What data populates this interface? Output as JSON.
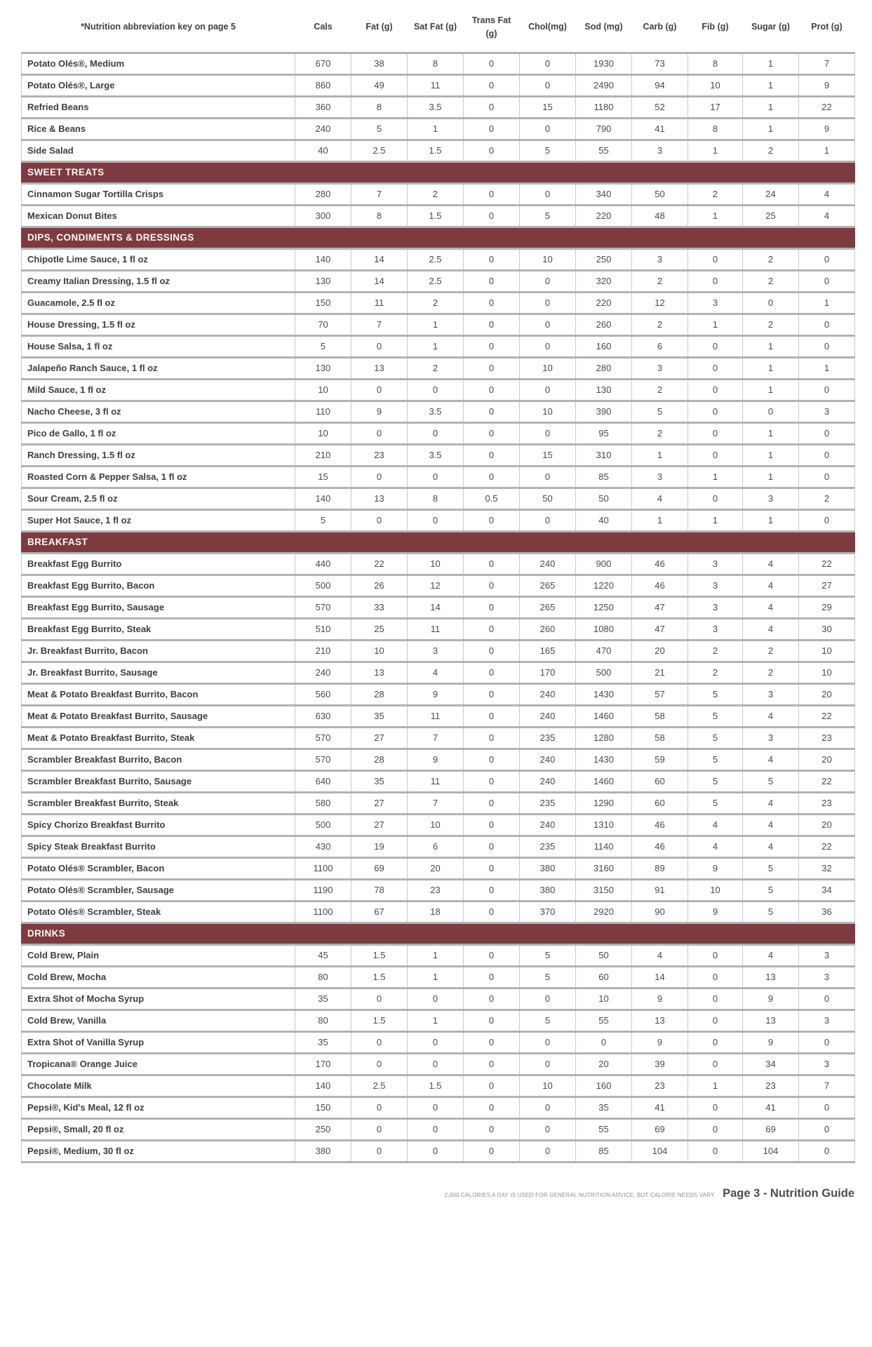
{
  "header": {
    "note": "*Nutrition abbreviation key on page 5",
    "columns": [
      "Cals",
      "Fat (g)",
      "Sat Fat (g)",
      "Trans Fat (g)",
      "Chol(mg)",
      "Sod (mg)",
      "Carb (g)",
      "Fib (g)",
      "Sugar (g)",
      "Prot (g)"
    ]
  },
  "colors": {
    "section_bg": "#7d3b41",
    "section_text": "#fdf8f4",
    "gridline_horizontal": "#b3b3b3",
    "gridline_vertical": "#c9c9c9"
  },
  "sections": [
    {
      "title": "",
      "items": [
        {
          "name": "Potato Olés®, Medium",
          "values": [
            "670",
            "38",
            "8",
            "0",
            "0",
            "1930",
            "73",
            "8",
            "1",
            "7"
          ]
        },
        {
          "name": "Potato Olés®, Large",
          "values": [
            "860",
            "49",
            "11",
            "0",
            "0",
            "2490",
            "94",
            "10",
            "1",
            "9"
          ]
        },
        {
          "name": "Refried Beans",
          "values": [
            "360",
            "8",
            "3.5",
            "0",
            "15",
            "1180",
            "52",
            "17",
            "1",
            "22"
          ]
        },
        {
          "name": "Rice & Beans",
          "values": [
            "240",
            "5",
            "1",
            "0",
            "0",
            "790",
            "41",
            "8",
            "1",
            "9"
          ]
        },
        {
          "name": "Side Salad",
          "values": [
            "40",
            "2.5",
            "1.5",
            "0",
            "5",
            "55",
            "3",
            "1",
            "2",
            "1"
          ]
        }
      ]
    },
    {
      "title": "SWEET TREATS",
      "items": [
        {
          "name": "Cinnamon Sugar Tortilla Crisps",
          "values": [
            "280",
            "7",
            "2",
            "0",
            "0",
            "340",
            "50",
            "2",
            "24",
            "4"
          ]
        },
        {
          "name": "Mexican Donut Bites",
          "values": [
            "300",
            "8",
            "1.5",
            "0",
            "5",
            "220",
            "48",
            "1",
            "25",
            "4"
          ]
        }
      ]
    },
    {
      "title": "DIPS, CONDIMENTS & DRESSINGS",
      "items": [
        {
          "name": "Chipotle Lime Sauce, 1 fl oz",
          "values": [
            "140",
            "14",
            "2.5",
            "0",
            "10",
            "250",
            "3",
            "0",
            "2",
            "0"
          ]
        },
        {
          "name": "Creamy Italian Dressing, 1.5 fl oz",
          "values": [
            "130",
            "14",
            "2.5",
            "0",
            "0",
            "320",
            "2",
            "0",
            "2",
            "0"
          ]
        },
        {
          "name": "Guacamole, 2.5 fl oz",
          "values": [
            "150",
            "11",
            "2",
            "0",
            "0",
            "220",
            "12",
            "3",
            "0",
            "1"
          ]
        },
        {
          "name": "House Dressing, 1.5 fl oz",
          "values": [
            "70",
            "7",
            "1",
            "0",
            "0",
            "260",
            "2",
            "1",
            "2",
            "0"
          ]
        },
        {
          "name": "House Salsa, 1 fl oz",
          "values": [
            "5",
            "0",
            "1",
            "0",
            "0",
            "160",
            "6",
            "0",
            "1",
            "0"
          ]
        },
        {
          "name": "Jalapeño Ranch Sauce, 1 fl oz",
          "values": [
            "130",
            "13",
            "2",
            "0",
            "10",
            "280",
            "3",
            "0",
            "1",
            "1"
          ]
        },
        {
          "name": "Mild Sauce, 1 fl oz",
          "values": [
            "10",
            "0",
            "0",
            "0",
            "0",
            "130",
            "2",
            "0",
            "1",
            "0"
          ]
        },
        {
          "name": "Nacho Cheese, 3 fl oz",
          "values": [
            "110",
            "9",
            "3.5",
            "0",
            "10",
            "390",
            "5",
            "0",
            "0",
            "3"
          ]
        },
        {
          "name": "Pico de Gallo, 1 fl oz",
          "values": [
            "10",
            "0",
            "0",
            "0",
            "0",
            "95",
            "2",
            "0",
            "1",
            "0"
          ]
        },
        {
          "name": "Ranch Dressing, 1.5 fl oz",
          "values": [
            "210",
            "23",
            "3.5",
            "0",
            "15",
            "310",
            "1",
            "0",
            "1",
            "0"
          ]
        },
        {
          "name": "Roasted Corn & Pepper Salsa, 1 fl oz",
          "values": [
            "15",
            "0",
            "0",
            "0",
            "0",
            "85",
            "3",
            "1",
            "1",
            "0"
          ]
        },
        {
          "name": "Sour Cream, 2.5 fl oz",
          "values": [
            "140",
            "13",
            "8",
            "0.5",
            "50",
            "50",
            "4",
            "0",
            "3",
            "2"
          ]
        },
        {
          "name": "Super Hot Sauce, 1 fl oz",
          "values": [
            "5",
            "0",
            "0",
            "0",
            "0",
            "40",
            "1",
            "1",
            "1",
            "0"
          ]
        }
      ]
    },
    {
      "title": "BREAKFAST",
      "items": [
        {
          "name": "Breakfast Egg Burrito",
          "values": [
            "440",
            "22",
            "10",
            "0",
            "240",
            "900",
            "46",
            "3",
            "4",
            "22"
          ]
        },
        {
          "name": "Breakfast Egg Burrito, Bacon",
          "values": [
            "500",
            "26",
            "12",
            "0",
            "265",
            "1220",
            "46",
            "3",
            "4",
            "27"
          ]
        },
        {
          "name": "Breakfast Egg Burrito, Sausage",
          "values": [
            "570",
            "33",
            "14",
            "0",
            "265",
            "1250",
            "47",
            "3",
            "4",
            "29"
          ]
        },
        {
          "name": "Breakfast Egg Burrito, Steak",
          "values": [
            "510",
            "25",
            "11",
            "0",
            "260",
            "1080",
            "47",
            "3",
            "4",
            "30"
          ]
        },
        {
          "name": "Jr. Breakfast Burrito, Bacon",
          "values": [
            "210",
            "10",
            "3",
            "0",
            "165",
            "470",
            "20",
            "2",
            "2",
            "10"
          ]
        },
        {
          "name": "Jr. Breakfast Burrito, Sausage",
          "values": [
            "240",
            "13",
            "4",
            "0",
            "170",
            "500",
            "21",
            "2",
            "2",
            "10"
          ]
        },
        {
          "name": "Meat & Potato Breakfast Burrito, Bacon",
          "values": [
            "560",
            "28",
            "9",
            "0",
            "240",
            "1430",
            "57",
            "5",
            "3",
            "20"
          ]
        },
        {
          "name": "Meat & Potato Breakfast Burrito, Sausage",
          "values": [
            "630",
            "35",
            "11",
            "0",
            "240",
            "1460",
            "58",
            "5",
            "4",
            "22"
          ]
        },
        {
          "name": "Meat & Potato Breakfast Burrito, Steak",
          "values": [
            "570",
            "27",
            "7",
            "0",
            "235",
            "1280",
            "58",
            "5",
            "3",
            "23"
          ]
        },
        {
          "name": "Scrambler Breakfast Burrito, Bacon",
          "values": [
            "570",
            "28",
            "9",
            "0",
            "240",
            "1430",
            "59",
            "5",
            "4",
            "20"
          ]
        },
        {
          "name": "Scrambler Breakfast Burrito, Sausage",
          "values": [
            "640",
            "35",
            "11",
            "0",
            "240",
            "1460",
            "60",
            "5",
            "5",
            "22"
          ]
        },
        {
          "name": "Scrambler Breakfast Burrito, Steak",
          "values": [
            "580",
            "27",
            "7",
            "0",
            "235",
            "1290",
            "60",
            "5",
            "4",
            "23"
          ]
        },
        {
          "name": "Spicy Chorizo Breakfast Burrito",
          "values": [
            "500",
            "27",
            "10",
            "0",
            "240",
            "1310",
            "46",
            "4",
            "4",
            "20"
          ]
        },
        {
          "name": "Spicy Steak Breakfast Burrito",
          "values": [
            "430",
            "19",
            "6",
            "0",
            "235",
            "1140",
            "46",
            "4",
            "4",
            "22"
          ]
        },
        {
          "name": "Potato Olés® Scrambler, Bacon",
          "values": [
            "1100",
            "69",
            "20",
            "0",
            "380",
            "3160",
            "89",
            "9",
            "5",
            "32"
          ]
        },
        {
          "name": "Potato Olés® Scrambler, Sausage",
          "values": [
            "1190",
            "78",
            "23",
            "0",
            "380",
            "3150",
            "91",
            "10",
            "5",
            "34"
          ]
        },
        {
          "name": "Potato Olés® Scrambler, Steak",
          "values": [
            "1100",
            "67",
            "18",
            "0",
            "370",
            "2920",
            "90",
            "9",
            "5",
            "36"
          ]
        }
      ]
    },
    {
      "title": "DRINKS",
      "items": [
        {
          "name": "Cold Brew, Plain",
          "values": [
            "45",
            "1.5",
            "1",
            "0",
            "5",
            "50",
            "4",
            "0",
            "4",
            "3"
          ]
        },
        {
          "name": "Cold Brew, Mocha",
          "values": [
            "80",
            "1.5",
            "1",
            "0",
            "5",
            "60",
            "14",
            "0",
            "13",
            "3"
          ]
        },
        {
          "name": "Extra Shot of Mocha Syrup",
          "values": [
            "35",
            "0",
            "0",
            "0",
            "0",
            "10",
            "9",
            "0",
            "9",
            "0"
          ]
        },
        {
          "name": "Cold Brew, Vanilla",
          "values": [
            "80",
            "1.5",
            "1",
            "0",
            "5",
            "55",
            "13",
            "0",
            "13",
            "3"
          ]
        },
        {
          "name": "Extra Shot of Vanilla Syrup",
          "values": [
            "35",
            "0",
            "0",
            "0",
            "0",
            "0",
            "9",
            "0",
            "9",
            "0"
          ]
        },
        {
          "name": "Tropicana® Orange Juice",
          "values": [
            "170",
            "0",
            "0",
            "0",
            "0",
            "20",
            "39",
            "0",
            "34",
            "3"
          ]
        },
        {
          "name": "Chocolate Milk",
          "values": [
            "140",
            "2.5",
            "1.5",
            "0",
            "10",
            "160",
            "23",
            "1",
            "23",
            "7"
          ]
        },
        {
          "name": "Pepsi®, Kid's Meal, 12 fl oz",
          "values": [
            "150",
            "0",
            "0",
            "0",
            "0",
            "35",
            "41",
            "0",
            "41",
            "0"
          ]
        },
        {
          "name": "Pepsi®, Small, 20 fl oz",
          "values": [
            "250",
            "0",
            "0",
            "0",
            "0",
            "55",
            "69",
            "0",
            "69",
            "0"
          ]
        },
        {
          "name": "Pepsi®, Medium, 30 fl oz",
          "values": [
            "380",
            "0",
            "0",
            "0",
            "0",
            "85",
            "104",
            "0",
            "104",
            "0"
          ]
        }
      ]
    }
  ],
  "footer": {
    "disclaimer": "2,000 CALORIES A DAY IS USED FOR GENERAL NUTRITION ADVICE, BUT CALORIE NEEDS VARY.",
    "page_label": "Page 3 - Nutrition Guide"
  }
}
